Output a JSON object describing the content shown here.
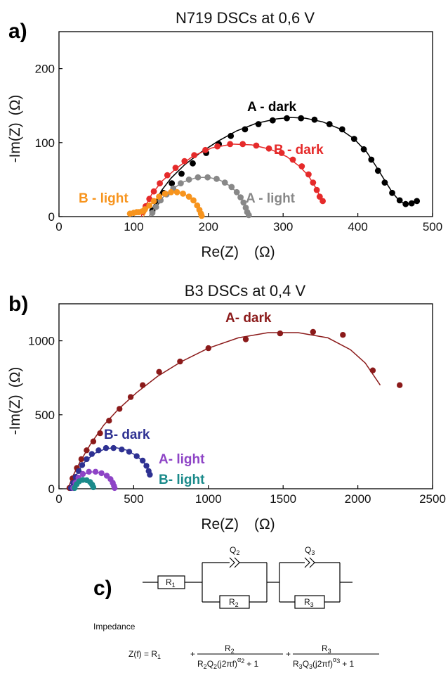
{
  "chart_data": [
    {
      "type": "scatter",
      "panel_label": "a)",
      "title": "N719 DSCs at 0,6 V",
      "xlabel": "Re(Z)",
      "xunit": "(Ω)",
      "ylabel": "-Im(Z)",
      "yunit": "(Ω)",
      "xlim": [
        0,
        500
      ],
      "ylim": [
        0,
        250
      ],
      "xticks": [
        0,
        100,
        200,
        300,
        400,
        500
      ],
      "yticks": [
        0,
        100,
        200
      ],
      "series": [
        {
          "name": "A - dark",
          "color": "#000000",
          "points": [
            [
              125,
              8
            ],
            [
              131,
              20
            ],
            [
              140,
              32
            ],
            [
              151,
              45
            ],
            [
              164,
              58
            ],
            [
              179,
              72
            ],
            [
              197,
              86
            ],
            [
              214,
              98
            ],
            [
              230,
              109
            ],
            [
              249,
              118
            ],
            [
              267,
              125
            ],
            [
              286,
              130
            ],
            [
              305,
              133
            ],
            [
              324,
              133
            ],
            [
              342,
              131
            ],
            [
              362,
              125
            ],
            [
              379,
              118
            ],
            [
              395,
              105
            ],
            [
              408,
              91
            ],
            [
              418,
              77
            ],
            [
              427,
              62
            ],
            [
              436,
              46
            ],
            [
              446,
              32
            ],
            [
              456,
              22
            ],
            [
              464,
              17
            ],
            [
              472,
              18
            ],
            [
              479,
              21
            ]
          ],
          "fit": [
            [
              121,
              0
            ],
            [
              127,
              15
            ],
            [
              137,
              35
            ],
            [
              150,
              52
            ],
            [
              168,
              70
            ],
            [
              190,
              87
            ],
            [
              213,
              102
            ],
            [
              238,
              116
            ],
            [
              264,
              126
            ],
            [
              291,
              132
            ],
            [
              310,
              134
            ],
            [
              330,
              133
            ],
            [
              353,
              128
            ],
            [
              375,
              119
            ],
            [
              395,
              105
            ],
            [
              412,
              87
            ],
            [
              425,
              67
            ],
            [
              436,
              49
            ],
            [
              446,
              33
            ],
            [
              455,
              22
            ],
            [
              463,
              17
            ],
            [
              471,
              18
            ],
            [
              479,
              21
            ]
          ]
        },
        {
          "name": "B - dark",
          "color": "#e52a2a",
          "points": [
            [
              112,
              6
            ],
            [
              116,
              14
            ],
            [
              121,
              24
            ],
            [
              127,
              34
            ],
            [
              135,
              45
            ],
            [
              145,
              56
            ],
            [
              156,
              66
            ],
            [
              168,
              75
            ],
            [
              181,
              83
            ],
            [
              196,
              90
            ],
            [
              212,
              95
            ],
            [
              229,
              98
            ],
            [
              246,
              98
            ],
            [
              264,
              96
            ],
            [
              281,
              92
            ],
            [
              298,
              86
            ],
            [
              313,
              77
            ],
            [
              325,
              68
            ],
            [
              334,
              57
            ],
            [
              340,
              46
            ],
            [
              345,
              36
            ],
            [
              349,
              27
            ],
            [
              353,
              21
            ]
          ],
          "fit": [
            [
              110,
              0
            ],
            [
              115,
              13
            ],
            [
              124,
              30
            ],
            [
              138,
              48
            ],
            [
              158,
              66
            ],
            [
              180,
              82
            ],
            [
              205,
              93
            ],
            [
              232,
              98
            ],
            [
              258,
              97
            ],
            [
              283,
              91
            ],
            [
              305,
              81
            ],
            [
              322,
              68
            ],
            [
              334,
              55
            ],
            [
              343,
              40
            ],
            [
              349,
              28
            ],
            [
              353,
              21
            ]
          ]
        },
        {
          "name": "A - light",
          "color": "#888888",
          "points": [
            [
              125,
              5
            ],
            [
              130,
              13
            ],
            [
              136,
              22
            ],
            [
              144,
              30
            ],
            [
              153,
              38
            ],
            [
              163,
              45
            ],
            [
              174,
              50
            ],
            [
              186,
              53
            ],
            [
              199,
              53
            ],
            [
              211,
              51
            ],
            [
              222,
              46
            ],
            [
              231,
              40
            ],
            [
              238,
              33
            ],
            [
              243,
              26
            ],
            [
              247,
              19
            ],
            [
              250,
              12
            ],
            [
              252,
              6
            ],
            [
              254,
              2
            ]
          ],
          "fit": [
            [
              121,
              0
            ],
            [
              128,
              12
            ],
            [
              138,
              25
            ],
            [
              151,
              37
            ],
            [
              167,
              47
            ],
            [
              185,
              53
            ],
            [
              201,
              53
            ],
            [
              216,
              49
            ],
            [
              228,
              42
            ],
            [
              238,
              33
            ],
            [
              245,
              22
            ],
            [
              250,
              12
            ],
            [
              254,
              2
            ]
          ]
        },
        {
          "name": "B - light",
          "color": "#f7941d",
          "points": [
            [
              95,
              4
            ],
            [
              100,
              5
            ],
            [
              104,
              6
            ],
            [
              107,
              6
            ],
            [
              111,
              7
            ],
            [
              115,
              10
            ],
            [
              121,
              15
            ],
            [
              127,
              21
            ],
            [
              134,
              27
            ],
            [
              142,
              31
            ],
            [
              150,
              33
            ],
            [
              158,
              33
            ],
            [
              166,
              31
            ],
            [
              174,
              27
            ],
            [
              180,
              22
            ],
            [
              185,
              15
            ],
            [
              188,
              9
            ],
            [
              190,
              4
            ],
            [
              191,
              1
            ]
          ],
          "fit": [
            [
              113,
              0
            ],
            [
              120,
              13
            ],
            [
              130,
              24
            ],
            [
              142,
              31
            ],
            [
              155,
              34
            ],
            [
              167,
              31
            ],
            [
              177,
              25
            ],
            [
              184,
              16
            ],
            [
              189,
              7
            ],
            [
              191,
              1
            ]
          ]
        }
      ]
    },
    {
      "type": "scatter",
      "panel_label": "b)",
      "title": "B3 DSCs at 0,4 V",
      "xlabel": "Re(Z)",
      "xunit": "(Ω)",
      "ylabel": "-Im(Z)",
      "yunit": "(Ω)",
      "xlim": [
        0,
        2500
      ],
      "ylim": [
        0,
        1250
      ],
      "xticks": [
        0,
        500,
        1000,
        1500,
        2000,
        2500
      ],
      "yticks": [
        0,
        500,
        1000
      ],
      "series": [
        {
          "name": "A- dark",
          "color": "#8b1a1a",
          "points": [
            [
              70,
              5
            ],
            [
              90,
              70
            ],
            [
              120,
              140
            ],
            [
              150,
              200
            ],
            [
              185,
              260
            ],
            [
              230,
              320
            ],
            [
              275,
              375
            ],
            [
              335,
              460
            ],
            [
              405,
              540
            ],
            [
              480,
              620
            ],
            [
              560,
              700
            ],
            [
              670,
              790
            ],
            [
              810,
              860
            ],
            [
              1000,
              950
            ],
            [
              1250,
              1010
            ],
            [
              1480,
              1050
            ],
            [
              1700,
              1060
            ],
            [
              1900,
              1040
            ],
            [
              2100,
              800
            ],
            [
              2280,
              700
            ]
          ],
          "fit": [
            [
              60,
              0
            ],
            [
              90,
              80
            ],
            [
              140,
              180
            ],
            [
              210,
              300
            ],
            [
              300,
              430
            ],
            [
              400,
              540
            ],
            [
              520,
              650
            ],
            [
              660,
              760
            ],
            [
              820,
              860
            ],
            [
              1000,
              950
            ],
            [
              1200,
              1020
            ],
            [
              1400,
              1055
            ],
            [
              1600,
              1055
            ],
            [
              1800,
              1020
            ],
            [
              1950,
              940
            ],
            [
              2050,
              850
            ],
            [
              2150,
              700
            ]
          ]
        },
        {
          "name": "B- dark",
          "color": "#2e3192",
          "points": [
            [
              80,
              5
            ],
            [
              95,
              40
            ],
            [
              112,
              80
            ],
            [
              132,
              120
            ],
            [
              155,
              160
            ],
            [
              185,
              200
            ],
            [
              220,
              235
            ],
            [
              265,
              260
            ],
            [
              315,
              275
            ],
            [
              365,
              275
            ],
            [
              420,
              265
            ],
            [
              470,
              250
            ],
            [
              520,
              220
            ],
            [
              560,
              190
            ],
            [
              585,
              155
            ],
            [
              600,
              120
            ],
            [
              608,
              95
            ]
          ],
          "fit": [
            [
              70,
              0
            ],
            [
              95,
              50
            ],
            [
              130,
              120
            ],
            [
              180,
              190
            ],
            [
              240,
              240
            ],
            [
              310,
              270
            ],
            [
              380,
              278
            ],
            [
              450,
              262
            ],
            [
              510,
              228
            ],
            [
              560,
              188
            ],
            [
              590,
              145
            ],
            [
              608,
              95
            ]
          ]
        },
        {
          "name": "A- light",
          "color": "#8e44c6",
          "points": [
            [
              95,
              5
            ],
            [
              110,
              40
            ],
            [
              130,
              75
            ],
            [
              160,
              100
            ],
            [
              200,
              115
            ],
            [
              245,
              115
            ],
            [
              285,
              105
            ],
            [
              320,
              88
            ],
            [
              345,
              65
            ],
            [
              360,
              40
            ],
            [
              368,
              20
            ],
            [
              372,
              5
            ]
          ],
          "fit": [
            [
              90,
              0
            ],
            [
              115,
              50
            ],
            [
              150,
              90
            ],
            [
              200,
              112
            ],
            [
              250,
              115
            ],
            [
              295,
              100
            ],
            [
              330,
              78
            ],
            [
              352,
              50
            ],
            [
              366,
              25
            ],
            [
              372,
              5
            ]
          ]
        },
        {
          "name": "B- light",
          "color": "#1a8a8a",
          "points": [
            [
              105,
              5
            ],
            [
              118,
              30
            ],
            [
              135,
              50
            ],
            [
              160,
              60
            ],
            [
              185,
              58
            ],
            [
              208,
              45
            ],
            [
              222,
              28
            ],
            [
              230,
              10
            ]
          ],
          "fit": [
            [
              100,
              0
            ],
            [
              120,
              35
            ],
            [
              145,
              55
            ],
            [
              175,
              60
            ],
            [
              200,
              50
            ],
            [
              218,
              32
            ],
            [
              230,
              10
            ]
          ]
        }
      ]
    }
  ],
  "circuit": {
    "panel_label": "c)",
    "r1": "R",
    "r1_sub": "1",
    "q2": "Q",
    "q2_sub": "2",
    "r2": "R",
    "r2_sub": "2",
    "q3": "Q",
    "q3_sub": "3",
    "r3": "R",
    "r3_sub": "3",
    "impedance_label": "Impedance",
    "formula_lhs": "Z(f) = R",
    "formula_lhs_sub": "1",
    "formula_plus1": "+",
    "formula_plus2": "+",
    "num1": "R",
    "num1_sub": "2",
    "den1_a": "R",
    "den1_a_sub": "2",
    "den1_b": "Q",
    "den1_b_sub": "2",
    "den1_c": "(j2πf)",
    "den1_exp": "α",
    "den1_exp_sub": "2",
    "den1_end": "+ 1",
    "num2": "R",
    "num2_sub": "3",
    "den2_a": "R",
    "den2_a_sub": "3",
    "den2_b": "Q",
    "den2_b_sub": "3",
    "den2_c": "(j2πf)",
    "den2_exp": "α",
    "den2_exp_sub": "3",
    "den2_end": "+ 1"
  }
}
